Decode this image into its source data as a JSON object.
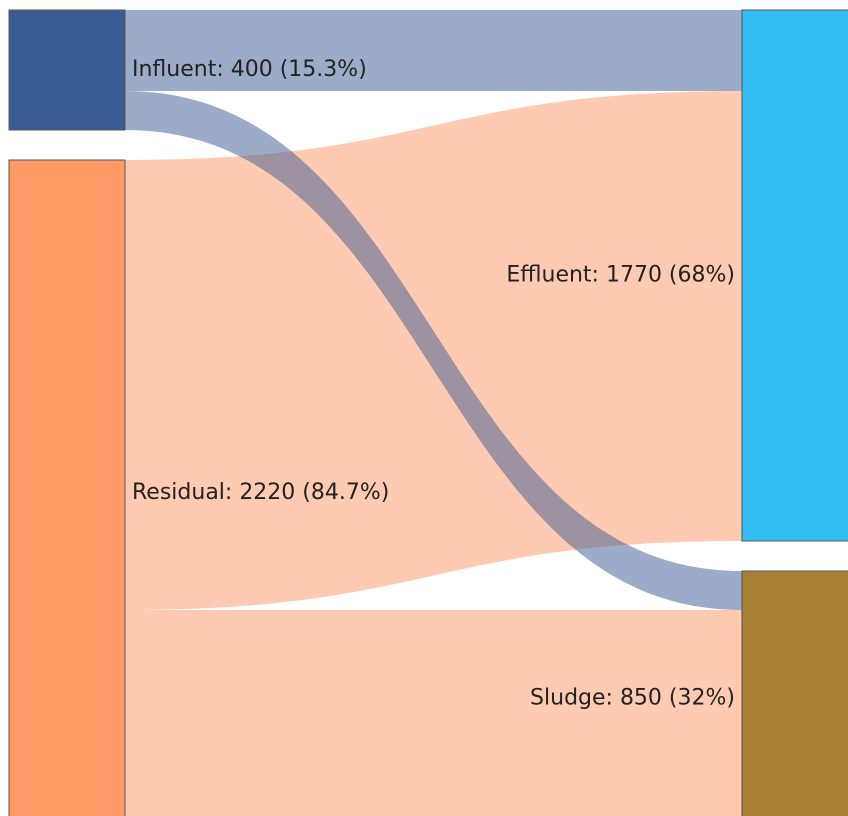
{
  "chart_data": {
    "type": "sankey",
    "nodes": [
      {
        "name": "Influent",
        "value": 400,
        "label": "Influent: 400 (15.3%)",
        "color": "#3a5a92",
        "column": 0
      },
      {
        "name": "Residual",
        "value": 2220,
        "label": "Residual: 2220 (84.7%)",
        "color": "#ff9966",
        "column": 0
      },
      {
        "name": "Effluent",
        "value": 1770,
        "label": "Effluent: 1770 (68%)",
        "color": "#33bdf2",
        "column": 1
      },
      {
        "name": "Sludge",
        "value": 850,
        "label": "Sludge: 850 (32%)",
        "color": "#a88035",
        "column": 1
      }
    ],
    "links": [
      {
        "source": 1,
        "target": 2,
        "value": 1500,
        "color": "rgba(253,150,100,0.5)"
      },
      {
        "source": 1,
        "target": 3,
        "value": 720,
        "color": "rgba(253,150,100,0.5)"
      },
      {
        "source": 0,
        "target": 2,
        "value": 270,
        "color": "rgba(58,90,146,0.5)"
      },
      {
        "source": 0,
        "target": 3,
        "value": 130,
        "color": "rgba(58,90,146,0.5)"
      }
    ]
  }
}
